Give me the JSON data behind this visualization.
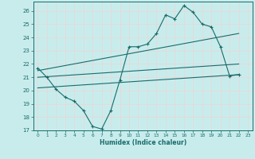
{
  "title": "",
  "xlabel": "Humidex (Indice chaleur)",
  "bg_color": "#c8ecec",
  "line_color": "#1a6b6b",
  "grid_color": "#e8d8d8",
  "xlim": [
    -0.5,
    23.5
  ],
  "ylim": [
    17,
    26.7
  ],
  "yticks": [
    17,
    18,
    19,
    20,
    21,
    22,
    23,
    24,
    25,
    26
  ],
  "xticks": [
    0,
    1,
    2,
    3,
    4,
    5,
    6,
    7,
    8,
    9,
    10,
    11,
    12,
    13,
    14,
    15,
    16,
    17,
    18,
    19,
    20,
    21,
    22,
    23
  ],
  "line1_x": [
    0,
    1,
    2,
    3,
    4,
    5,
    6,
    7,
    8,
    9,
    10,
    11,
    12,
    13,
    14,
    15,
    16,
    17,
    18,
    19,
    20,
    21,
    22
  ],
  "line1_y": [
    21.7,
    21.0,
    20.1,
    19.5,
    19.2,
    18.5,
    17.3,
    17.1,
    18.5,
    20.8,
    23.3,
    23.3,
    23.5,
    24.3,
    25.7,
    25.4,
    26.4,
    25.9,
    25.0,
    24.8,
    23.3,
    21.1,
    21.2
  ],
  "line2_x": [
    0,
    22
  ],
  "line2_y": [
    21.5,
    24.3
  ],
  "line3_x": [
    0,
    22
  ],
  "line3_y": [
    21.0,
    22.0
  ],
  "line4_x": [
    0,
    22
  ],
  "line4_y": [
    20.2,
    21.2
  ]
}
